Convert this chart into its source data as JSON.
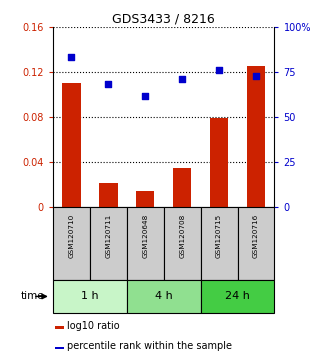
{
  "title": "GDS3433 / 8216",
  "samples": [
    "GSM120710",
    "GSM120711",
    "GSM120648",
    "GSM120708",
    "GSM120715",
    "GSM120716"
  ],
  "log10_ratio": [
    0.11,
    0.022,
    0.015,
    0.035,
    0.079,
    0.125
  ],
  "percentile_rank": [
    0.83,
    0.68,
    0.615,
    0.71,
    0.76,
    0.725
  ],
  "groups": [
    {
      "label": "1 h",
      "indices": [
        0,
        1
      ],
      "color": "#c8f5c8"
    },
    {
      "label": "4 h",
      "indices": [
        2,
        3
      ],
      "color": "#90e090"
    },
    {
      "label": "24 h",
      "indices": [
        4,
        5
      ],
      "color": "#44cc44"
    }
  ],
  "ylim_left": [
    0,
    0.16
  ],
  "ylim_right": [
    0,
    1.0
  ],
  "yticks_left": [
    0,
    0.04,
    0.08,
    0.12,
    0.16
  ],
  "yticks_left_labels": [
    "0",
    "0.04",
    "0.08",
    "0.12",
    "0.16"
  ],
  "yticks_right": [
    0,
    0.25,
    0.5,
    0.75,
    1.0
  ],
  "yticks_right_labels": [
    "0",
    "25",
    "50",
    "75",
    "100%"
  ],
  "bar_color": "#cc2200",
  "dot_color": "#0000cc",
  "sample_bg_color": "#cccccc",
  "time_label": "time",
  "legend_bar_label": "log10 ratio",
  "legend_dot_label": "percentile rank within the sample",
  "bar_width": 0.5
}
